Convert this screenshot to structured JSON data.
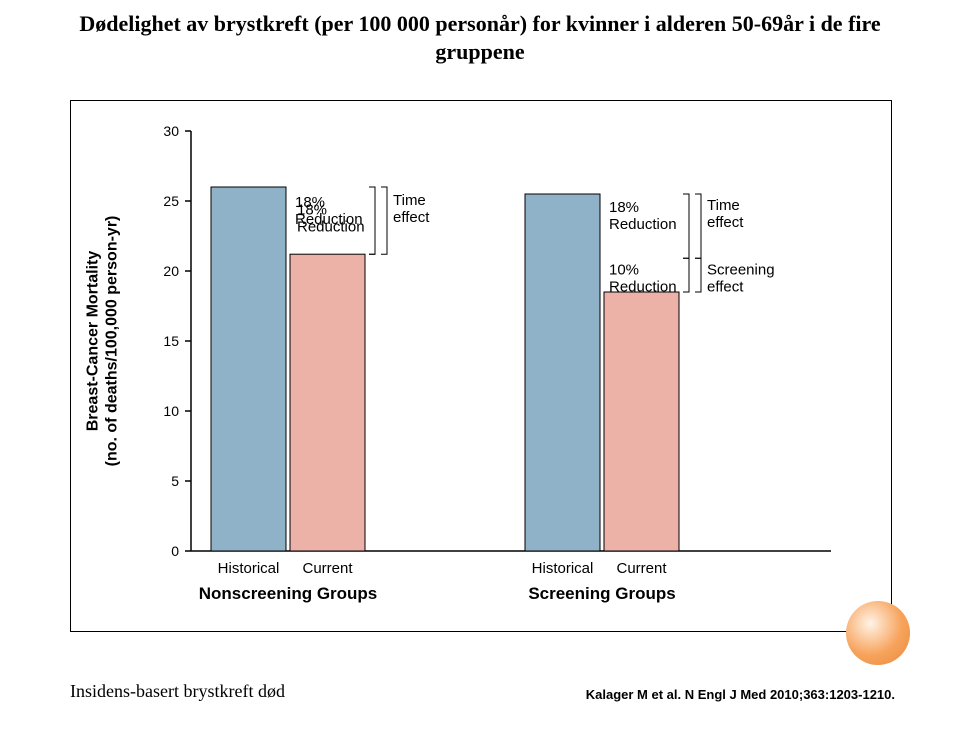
{
  "title_line1": "Dødelighet av brystkreft (per 100 000 personår) for kvinner i alderen 50-69år i de fire",
  "title_line2": "gruppene",
  "chart": {
    "type": "bar",
    "background_color": "#ffffff",
    "ylim": [
      0,
      30
    ],
    "ytick_step": 5,
    "yticks": [
      0,
      5,
      10,
      15,
      20,
      25,
      30
    ],
    "ylabel_line1": "Breast-Cancer Mortality",
    "ylabel_line2": "(no. of deaths/100,000 person-yr)",
    "ylabel_fontsize": 16,
    "ylabel_weight": "bold",
    "axis_color": "#000000",
    "bar_border_color": "#000000",
    "bar_colors": {
      "historical": "#8fb2c9",
      "current": "#edb2a7"
    },
    "groups": [
      {
        "group_label": "Nonscreening Groups",
        "bars": [
          {
            "xlabel": "Historical",
            "value": 26.0,
            "color": "#8fb2c9"
          },
          {
            "xlabel": "Current",
            "value": 21.2,
            "color": "#edb2a7"
          }
        ],
        "annotations": [
          {
            "text": "18%",
            "kind": "reduction"
          },
          {
            "text": "Reduction",
            "kind": "reduction2"
          },
          {
            "text": "Time",
            "kind": "time"
          },
          {
            "text": "effect",
            "kind": "time2"
          }
        ]
      },
      {
        "group_label": "Screening Groups",
        "bars": [
          {
            "xlabel": "Historical",
            "value": 25.5,
            "color": "#8fb2c9"
          },
          {
            "xlabel": "Current",
            "value": 18.5,
            "color": "#edb2a7"
          }
        ],
        "annotations": [
          {
            "text": "18%",
            "kind": "red1"
          },
          {
            "text": "Reduction",
            "kind": "red1b"
          },
          {
            "text": "10%",
            "kind": "red2"
          },
          {
            "text": "Reduction",
            "kind": "red2b"
          },
          {
            "text": "Time",
            "kind": "t1"
          },
          {
            "text": "effect",
            "kind": "t1b"
          },
          {
            "text": "Screening",
            "kind": "s1"
          },
          {
            "text": "effect",
            "kind": "s1b"
          }
        ]
      }
    ],
    "group_label_fontsize": 17,
    "group_label_weight": "bold",
    "xlabel_fontsize": 15,
    "tick_fontsize": 14,
    "annotation_fontsize": 15,
    "bracket_color": "#000000",
    "bracket_stroke": 1
  },
  "footer_left": "Insidens-basert brystkreft død",
  "footer_right": "Kalager M et al. N Engl J Med 2010;363:1203-1210."
}
